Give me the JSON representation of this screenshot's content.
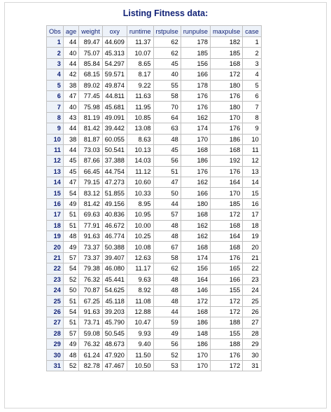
{
  "title": "Listing Fitness data:",
  "columns": [
    "Obs",
    "age",
    "weight",
    "oxy",
    "runtime",
    "rstpulse",
    "runpulse",
    "maxpulse",
    "case"
  ],
  "rows": [
    [
      "1",
      "44",
      "89.47",
      "44.609",
      "11.37",
      "62",
      "178",
      "182",
      "1"
    ],
    [
      "2",
      "40",
      "75.07",
      "45.313",
      "10.07",
      "62",
      "185",
      "185",
      "2"
    ],
    [
      "3",
      "44",
      "85.84",
      "54.297",
      "8.65",
      "45",
      "156",
      "168",
      "3"
    ],
    [
      "4",
      "42",
      "68.15",
      "59.571",
      "8.17",
      "40",
      "166",
      "172",
      "4"
    ],
    [
      "5",
      "38",
      "89.02",
      "49.874",
      "9.22",
      "55",
      "178",
      "180",
      "5"
    ],
    [
      "6",
      "47",
      "77.45",
      "44.811",
      "11.63",
      "58",
      "176",
      "176",
      "6"
    ],
    [
      "7",
      "40",
      "75.98",
      "45.681",
      "11.95",
      "70",
      "176",
      "180",
      "7"
    ],
    [
      "8",
      "43",
      "81.19",
      "49.091",
      "10.85",
      "64",
      "162",
      "170",
      "8"
    ],
    [
      "9",
      "44",
      "81.42",
      "39.442",
      "13.08",
      "63",
      "174",
      "176",
      "9"
    ],
    [
      "10",
      "38",
      "81.87",
      "60.055",
      "8.63",
      "48",
      "170",
      "186",
      "10"
    ],
    [
      "11",
      "44",
      "73.03",
      "50.541",
      "10.13",
      "45",
      "168",
      "168",
      "11"
    ],
    [
      "12",
      "45",
      "87.66",
      "37.388",
      "14.03",
      "56",
      "186",
      "192",
      "12"
    ],
    [
      "13",
      "45",
      "66.45",
      "44.754",
      "11.12",
      "51",
      "176",
      "176",
      "13"
    ],
    [
      "14",
      "47",
      "79.15",
      "47.273",
      "10.60",
      "47",
      "162",
      "164",
      "14"
    ],
    [
      "15",
      "54",
      "83.12",
      "51.855",
      "10.33",
      "50",
      "166",
      "170",
      "15"
    ],
    [
      "16",
      "49",
      "81.42",
      "49.156",
      "8.95",
      "44",
      "180",
      "185",
      "16"
    ],
    [
      "17",
      "51",
      "69.63",
      "40.836",
      "10.95",
      "57",
      "168",
      "172",
      "17"
    ],
    [
      "18",
      "51",
      "77.91",
      "46.672",
      "10.00",
      "48",
      "162",
      "168",
      "18"
    ],
    [
      "19",
      "48",
      "91.63",
      "46.774",
      "10.25",
      "48",
      "162",
      "164",
      "19"
    ],
    [
      "20",
      "49",
      "73.37",
      "50.388",
      "10.08",
      "67",
      "168",
      "168",
      "20"
    ],
    [
      "21",
      "57",
      "73.37",
      "39.407",
      "12.63",
      "58",
      "174",
      "176",
      "21"
    ],
    [
      "22",
      "54",
      "79.38",
      "46.080",
      "11.17",
      "62",
      "156",
      "165",
      "22"
    ],
    [
      "23",
      "52",
      "76.32",
      "45.441",
      "9.63",
      "48",
      "164",
      "166",
      "23"
    ],
    [
      "24",
      "50",
      "70.87",
      "54.625",
      "8.92",
      "48",
      "146",
      "155",
      "24"
    ],
    [
      "25",
      "51",
      "67.25",
      "45.118",
      "11.08",
      "48",
      "172",
      "172",
      "25"
    ],
    [
      "26",
      "54",
      "91.63",
      "39.203",
      "12.88",
      "44",
      "168",
      "172",
      "26"
    ],
    [
      "27",
      "51",
      "73.71",
      "45.790",
      "10.47",
      "59",
      "186",
      "188",
      "27"
    ],
    [
      "28",
      "57",
      "59.08",
      "50.545",
      "9.93",
      "49",
      "148",
      "155",
      "28"
    ],
    [
      "29",
      "49",
      "76.32",
      "48.673",
      "9.40",
      "56",
      "186",
      "188",
      "29"
    ],
    [
      "30",
      "48",
      "61.24",
      "47.920",
      "11.50",
      "52",
      "170",
      "176",
      "30"
    ],
    [
      "31",
      "52",
      "82.78",
      "47.467",
      "10.50",
      "53",
      "170",
      "172",
      "31"
    ]
  ]
}
